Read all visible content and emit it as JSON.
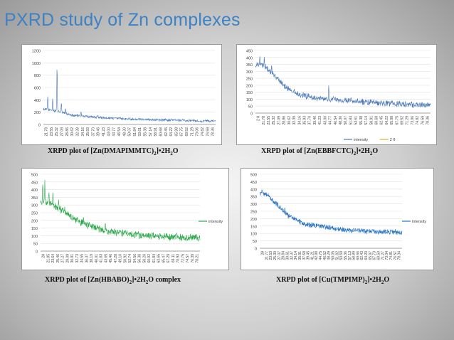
{
  "slide": {
    "title": "PXRD study of Zn complexes"
  },
  "captions": [
    {
      "pre": "XRPD plot  of  [Zn(DMAPIMMTC)",
      "mid": "]•2H",
      "post": "O",
      "subs": [
        "2",
        "2"
      ]
    },
    {
      "pre": "XRPD plot  of  [Zn(EBBFCTC)",
      "mid": "]•2H",
      "post": "O",
      "subs": [
        "2",
        "2"
      ]
    },
    {
      "pre": "XRPD plot of  [Zn(HBABO)",
      "mid": "]•2H",
      "post": "O complex",
      "subs": [
        "2",
        "2"
      ]
    },
    {
      "pre": "XRPD plot of  [Cu(TMPIMP)",
      "mid": "]•2H",
      "post": "O",
      "subs": [
        "2",
        "2"
      ]
    }
  ],
  "chart_data": [
    {
      "type": "line",
      "ylim": [
        0,
        1200
      ],
      "yticks": [
        0,
        200,
        400,
        600,
        800,
        1000,
        1200
      ],
      "x_tick_labels": [
        "21.78",
        "23.55",
        "25.32",
        "27.09",
        "28.86",
        "30.62",
        "32.39",
        "34.16",
        "35.93",
        "37.70",
        "39.46",
        "41.23",
        "43.00",
        "44.77",
        "46.54",
        "48.30",
        "50.07",
        "51.84",
        "53.61",
        "55.38",
        "57.14",
        "58.91",
        "60.68",
        "62.45",
        "64.22",
        "65.98",
        "67.75",
        "69.52",
        "71.29",
        "73.06",
        "74.82",
        "76.59",
        "78.36"
      ],
      "series": [
        {
          "color": "#4a78b8",
          "profile": [
            [
              20,
              250
            ],
            [
              25,
              215
            ],
            [
              30,
              150
            ],
            [
              40,
              110
            ],
            [
              50,
              90
            ],
            [
              60,
              75
            ],
            [
              70,
              65
            ],
            [
              78,
              55
            ]
          ],
          "noise": 25,
          "peaks": [
            [
              21.5,
              220
            ],
            [
              23.2,
              190
            ],
            [
              24.7,
              760
            ],
            [
              26.2,
              150
            ],
            [
              27.6,
              85
            ],
            [
              33.0,
              70
            ],
            [
              38.8,
              40
            ]
          ]
        }
      ]
    },
    {
      "type": "line",
      "ylim": [
        0,
        450
      ],
      "yticks": [
        0,
        50,
        100,
        150,
        200,
        250,
        300,
        350,
        400,
        450
      ],
      "x_tick_labels": [
        "2 θ",
        "21.78",
        "23.55",
        "25.32",
        "27.09",
        "28.86",
        "30.62",
        "32.39",
        "34.16",
        "35.93",
        "37.70",
        "39.46",
        "41.23",
        "43.00",
        "44.77",
        "46.54",
        "48.30",
        "50.07",
        "51.84",
        "53.61",
        "55.38",
        "57.14",
        "58.91",
        "60.68",
        "62.45",
        "64.22",
        "65.98",
        "67.75",
        "69.52",
        "71.29",
        "73.06",
        "74.82",
        "76.59",
        "78.36"
      ],
      "legend": [
        {
          "label": "intensity",
          "color": "#4a78b8"
        },
        {
          "label": "2 θ",
          "color": "#e0b020"
        }
      ],
      "series": [
        {
          "color": "#4a78b8",
          "profile": [
            [
              20,
              350
            ],
            [
              23,
              340
            ],
            [
              27,
              260
            ],
            [
              30,
              190
            ],
            [
              35,
              135
            ],
            [
              40,
              110
            ],
            [
              50,
              90
            ],
            [
              60,
              75
            ],
            [
              70,
              65
            ],
            [
              78,
              55
            ]
          ],
          "noise": 25,
          "peaks": [
            [
              21.5,
              60
            ],
            [
              23.0,
              60
            ],
            [
              25.5,
              45
            ],
            [
              44.9,
              90
            ]
          ]
        }
      ]
    },
    {
      "type": "line",
      "ylim": [
        0,
        500
      ],
      "yticks": [
        0,
        50,
        100,
        150,
        200,
        250,
        300,
        350,
        400,
        450,
        500
      ],
      "x_tick_labels": [
        "2θ",
        "21.85",
        "23.64",
        "25.46",
        "27.27",
        "29.09",
        "30.91",
        "32.73",
        "34.55",
        "36.37",
        "38.19",
        "40.01",
        "41.83",
        "43.65",
        "45.46",
        "47.28",
        "49.10",
        "50.92",
        "52.74",
        "54.56",
        "56.38",
        "58.20",
        "60.02",
        "61.84",
        "63.65",
        "65.47",
        "67.29",
        "69.11",
        "70.93",
        "72.75",
        "74.57",
        "76.39",
        "78.21"
      ],
      "legend": [
        {
          "label": "intensity",
          "color": "#2aa84a"
        }
      ],
      "series": [
        {
          "color": "#2aa84a",
          "profile": [
            [
              20,
              330
            ],
            [
              25,
              300
            ],
            [
              30,
              240
            ],
            [
              35,
              185
            ],
            [
              40,
              155
            ],
            [
              45,
              130
            ],
            [
              50,
              115
            ],
            [
              60,
              100
            ],
            [
              70,
              92
            ],
            [
              78,
              88
            ]
          ],
          "noise": 28,
          "peaks": [
            [
              20.8,
              110
            ],
            [
              21.6,
              120
            ],
            [
              23.1,
              80
            ],
            [
              24.6,
              90
            ],
            [
              26.8,
              55
            ],
            [
              29.0,
              50
            ],
            [
              36.0,
              45
            ],
            [
              44.2,
              40
            ]
          ]
        }
      ]
    },
    {
      "type": "line",
      "ylim": [
        0,
        500
      ],
      "yticks": [
        0,
        50,
        100,
        150,
        200,
        250,
        300,
        350,
        400,
        450,
        500
      ],
      "x_tick_labels": [
        "2θ",
        "21.77",
        "23.53",
        "25.30",
        "27.07",
        "28.84",
        "30.61",
        "32.37",
        "34.14",
        "35.91",
        "37.68",
        "39.45",
        "41.21",
        "42.98",
        "44.75",
        "46.52",
        "48.29",
        "50.05",
        "51.82",
        "53.59",
        "55.36",
        "57.13",
        "58.89",
        "60.66",
        "62.43",
        "64.20",
        "65.97",
        "67.73",
        "69.50",
        "71.27",
        "73.04",
        "74.81",
        "76.57",
        "78.34"
      ],
      "legend": [
        {
          "label": "intensity",
          "color": "#2673c0"
        }
      ],
      "series": [
        {
          "color": "#2673c0",
          "profile": [
            [
              20,
              375
            ],
            [
              24,
              350
            ],
            [
              28,
              280
            ],
            [
              32,
              220
            ],
            [
              36,
              185
            ],
            [
              40,
              160
            ],
            [
              45,
              150
            ],
            [
              50,
              138
            ],
            [
              55,
              125
            ],
            [
              60,
              118
            ],
            [
              70,
              112
            ],
            [
              78,
              110
            ]
          ],
          "noise": 22,
          "peaks": [
            [
              21.0,
              40
            ],
            [
              23.5,
              30
            ],
            [
              27.5,
              40
            ],
            [
              30.5,
              30
            ],
            [
              44.5,
              25
            ]
          ]
        }
      ]
    }
  ]
}
